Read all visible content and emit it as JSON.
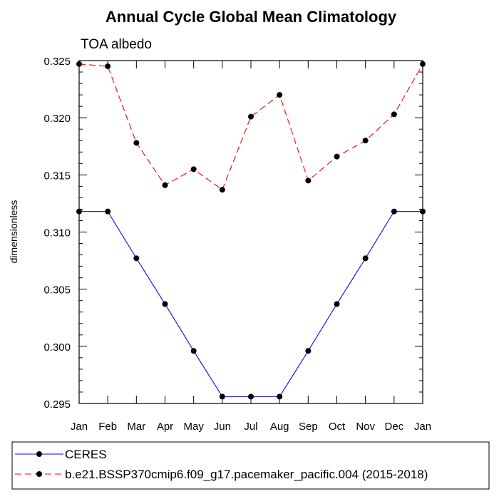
{
  "chart_data": {
    "type": "line",
    "title": "Annual Cycle Global Mean Climatology",
    "subtitle": "TOA albedo",
    "xlabel": "",
    "ylabel": "dimensionless",
    "categories": [
      "Jan",
      "Feb",
      "Mar",
      "Apr",
      "May",
      "Jun",
      "Jul",
      "Aug",
      "Sep",
      "Oct",
      "Nov",
      "Dec",
      "Jan"
    ],
    "ylim": [
      0.295,
      0.325
    ],
    "yticks": [
      "0.295",
      "0.300",
      "0.305",
      "0.310",
      "0.315",
      "0.320",
      "0.325"
    ],
    "grid": false,
    "legend": "bottom",
    "series": [
      {
        "name": "CERES",
        "color": "#0000ff",
        "dash": "solid",
        "values": [
          0.3118,
          0.3118,
          0.3077,
          0.3037,
          0.2996,
          0.2956,
          0.2956,
          0.2956,
          0.2996,
          0.3037,
          0.3077,
          0.3118,
          0.3118
        ]
      },
      {
        "name": "b.e21.BSSP370cmip6.f09_g17.pacemaker_pacific.004 (2015-2018)",
        "color": "#ff0000",
        "dash": "dashed",
        "values": [
          0.3247,
          0.3245,
          0.3178,
          0.3141,
          0.3155,
          0.3137,
          0.3201,
          0.322,
          0.3145,
          0.3166,
          0.318,
          0.3203,
          0.3247
        ]
      }
    ]
  }
}
